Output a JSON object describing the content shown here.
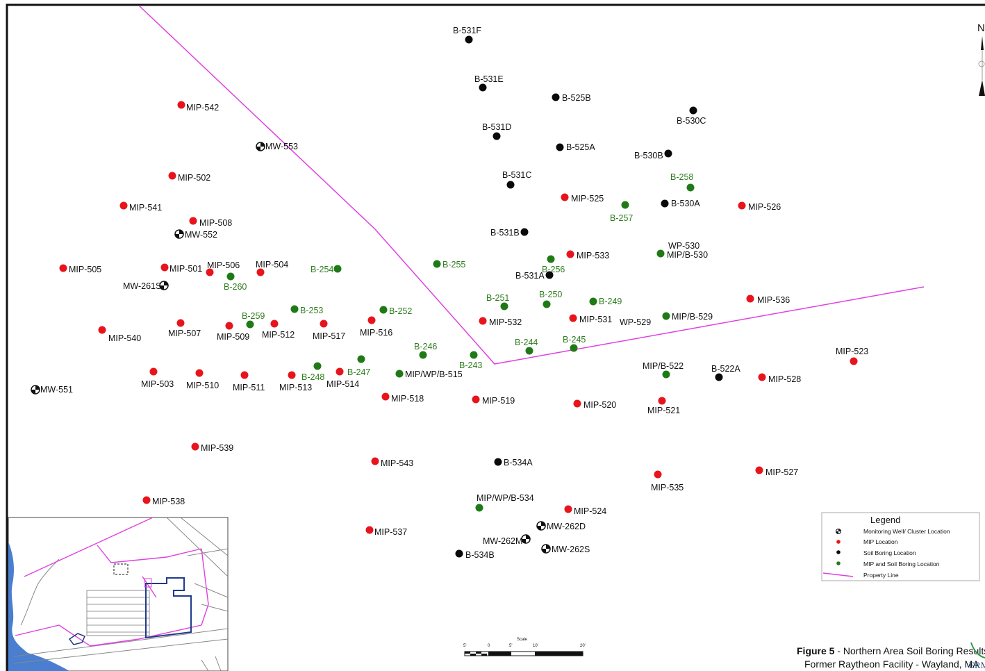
{
  "north_label": "N",
  "colors": {
    "mip": "#e8141c",
    "soil_boring": "#0a0a0a",
    "mip_and_soil_boring": "#1f7a16",
    "property_line": "#e040e0",
    "green_label": "#2e7d1e"
  },
  "legend": {
    "title": "Legend",
    "items": [
      {
        "icon": "monitoring-well-icon",
        "label": "Monitoring Well/ Cluster Location"
      },
      {
        "icon": "red-dot-icon",
        "label": "MIP Location"
      },
      {
        "icon": "black-dot-icon",
        "label": "Soil Boring Location"
      },
      {
        "icon": "green-dot-icon",
        "label": "MIP and Soil Boring Location"
      },
      {
        "icon": "magenta-line-icon",
        "label": "Property Line"
      }
    ]
  },
  "scale": {
    "title": "Scale",
    "ticks": [
      "5'",
      "0",
      "5'",
      "10'",
      "20'"
    ]
  },
  "caption": {
    "figure": "Figure 5",
    "title": " - Northern Area Soil Boring Results",
    "subtitle": "Former Raytheon Facility - Wayland, MA"
  },
  "logo_text": "ERM",
  "labels": {
    "mip_542": "MIP-542",
    "mw_553": "MW-553",
    "mip_502": "MIP-502",
    "mip_541": "MIP-541",
    "mip_508": "MIP-508",
    "mw_552": "MW-552",
    "mip_505": "MIP-505",
    "mip_501": "MIP-501",
    "mip_506": "MIP-506",
    "mip_504": "MIP-504",
    "b_260": "B-260",
    "mw_261s": "MW-261S",
    "b_254": "B-254",
    "b_255": "B-255",
    "b_259": "B-259",
    "b_253": "B-253",
    "b_252": "B-252",
    "mip_540": "MIP-540",
    "mip_507": "MIP-507",
    "mip_509": "MIP-509",
    "mip_512": "MIP-512",
    "mip_517": "MIP-517",
    "mip_516": "MIP-516",
    "b_246": "B-246",
    "b_243": "B-243",
    "b_248": "B-248",
    "b_247": "B-247",
    "mip_wp_b_515": "MIP/WP/B-515",
    "mip_503": "MIP-503",
    "mip_510": "MIP-510",
    "mip_511": "MIP-511",
    "mip_513": "MIP-513",
    "mip_514": "MIP-514",
    "mw_551": "MW-551",
    "mip_518": "MIP-518",
    "mip_519": "MIP-519",
    "mip_520": "MIP-520",
    "mip_521": "MIP-521",
    "mip_b_522": "MIP/B-522",
    "b_522a": "B-522A",
    "mip_528": "MIP-528",
    "mip_523": "MIP-523",
    "mip_539": "MIP-539",
    "mip_543": "MIP-543",
    "b_534a": "B-534A",
    "mip_535": "MIP-535",
    "mip_527": "MIP-527",
    "mip_538": "MIP-538",
    "mip_wp_b_534": "MIP/WP/B-534",
    "mip_524": "MIP-524",
    "mw_262d": "MW-262D",
    "mip_537": "MIP-537",
    "mw_262m": "MW-262M",
    "mw_262s": "MW-262S",
    "b_534b": "B-534B",
    "b_531f": "B-531F",
    "b_531e": "B-531E",
    "b_525b": "B-525B",
    "b_530c": "B-530C",
    "b_531d": "B-531D",
    "b_525a": "B-525A",
    "b_530b": "B-530B",
    "b_531c": "B-531C",
    "b_258": "B-258",
    "mip_525": "MIP-525",
    "b_257": "B-257",
    "b_530a": "B-530A",
    "mip_526": "MIP-526",
    "b_531b": "B-531B",
    "wp_530": "WP-530",
    "mip_b_530": "MIP/B-530",
    "mip_533": "MIP-533",
    "b_256": "B-256",
    "b_531a": "B-531A",
    "b_251": "B-251",
    "b_250": "B-250",
    "b_249": "B-249",
    "mip_536": "MIP-536",
    "mip_532": "MIP-532",
    "mip_531": "MIP-531",
    "wp_529": "WP-529",
    "mip_b_529": "MIP/B-529",
    "b_244": "B-244",
    "b_245": "B-245"
  }
}
